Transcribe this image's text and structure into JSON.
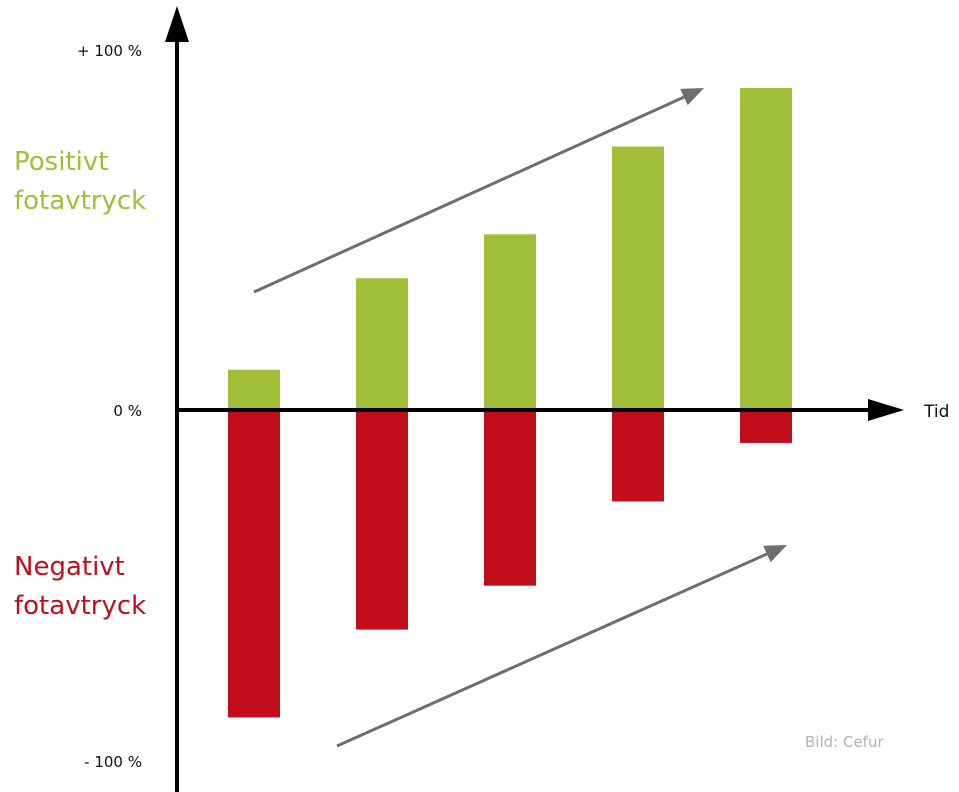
{
  "chart_data": {
    "type": "bar",
    "categories": [
      "",
      "",
      "",
      "",
      ""
    ],
    "series": [
      {
        "name": "Positivt fotavtryck",
        "values": [
          11,
          36,
          48,
          72,
          88
        ],
        "color": "#a0be36"
      },
      {
        "name": "Negativt fotavtryck",
        "values": [
          -84,
          -60,
          -48,
          -25,
          -9
        ],
        "color": "#c20e1c"
      }
    ],
    "ylim": [
      -100,
      100
    ],
    "yticks": [
      {
        "value": 100,
        "label": "+ 100 %"
      },
      {
        "value": 0,
        "label": "0 %"
      },
      {
        "value": -100,
        "label": "- 100 %"
      }
    ],
    "xlabel": "Tid",
    "ylabel": "",
    "grid": false,
    "annotations": [
      {
        "type": "arrow",
        "color": "#6e6e6e",
        "meaning": "increasing positive footprint"
      },
      {
        "type": "arrow",
        "color": "#6e6e6e",
        "meaning": "decreasing negative footprint"
      }
    ]
  },
  "labels": {
    "positive": {
      "text": "Positivt\nfotavtryck",
      "line1": "Positivt",
      "line2": "fotavtryck",
      "color": "#a0be36"
    },
    "negative": {
      "text": "Negativt\nfotavtryck",
      "line1": "Negativt",
      "line2": "fotavtryck",
      "color": "#c20e1c"
    }
  },
  "credit": "Bild: Cefur",
  "colors": {
    "axis": "#000000",
    "arrow": "#6e6e6e"
  }
}
